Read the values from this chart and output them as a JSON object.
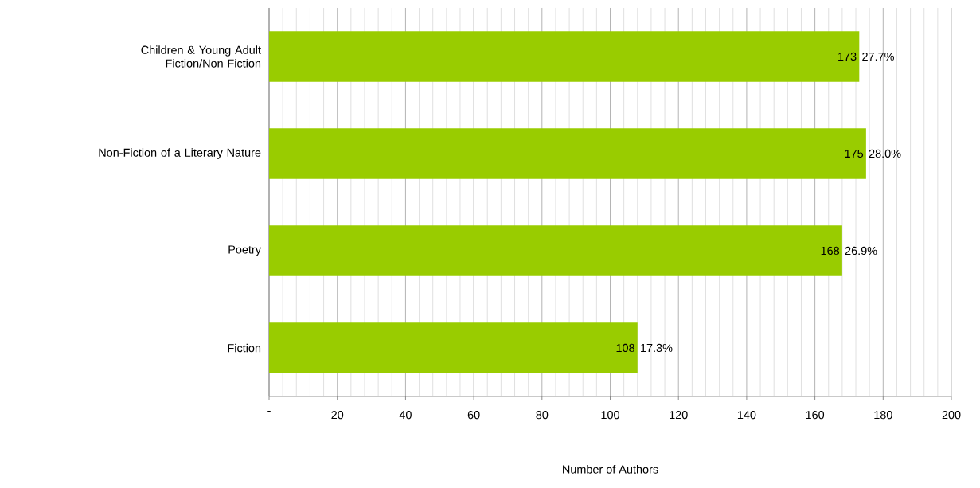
{
  "chart_data": {
    "type": "bar",
    "orientation": "horizontal",
    "xlabel": "Number of Authors",
    "categories": [
      "Children & Young Adult Fiction/Non Fiction",
      "Non-Fiction of a Literary Nature",
      "Poetry",
      "Fiction"
    ],
    "values": [
      173,
      175,
      168,
      108
    ],
    "color": "#99cc00",
    "data_labels": true,
    "xlim": [
      0,
      200
    ],
    "xticks": [
      {
        "value": 0,
        "label": "-"
      },
      20,
      40,
      60,
      80,
      100,
      120,
      140,
      160,
      180,
      200
    ],
    "grid": "x",
    "annotations": [
      {
        "text": "27.7%",
        "x": 173,
        "y": "Children & Young Adult Fiction/Non Fiction"
      },
      {
        "text": "28.0%",
        "x": 175,
        "y": "Non-Fiction of a Literary Nature"
      },
      {
        "text": "26.9%",
        "x": 168,
        "y": "Poetry"
      },
      {
        "text": "17.3%",
        "x": 108,
        "y": "Fiction"
      }
    ]
  }
}
